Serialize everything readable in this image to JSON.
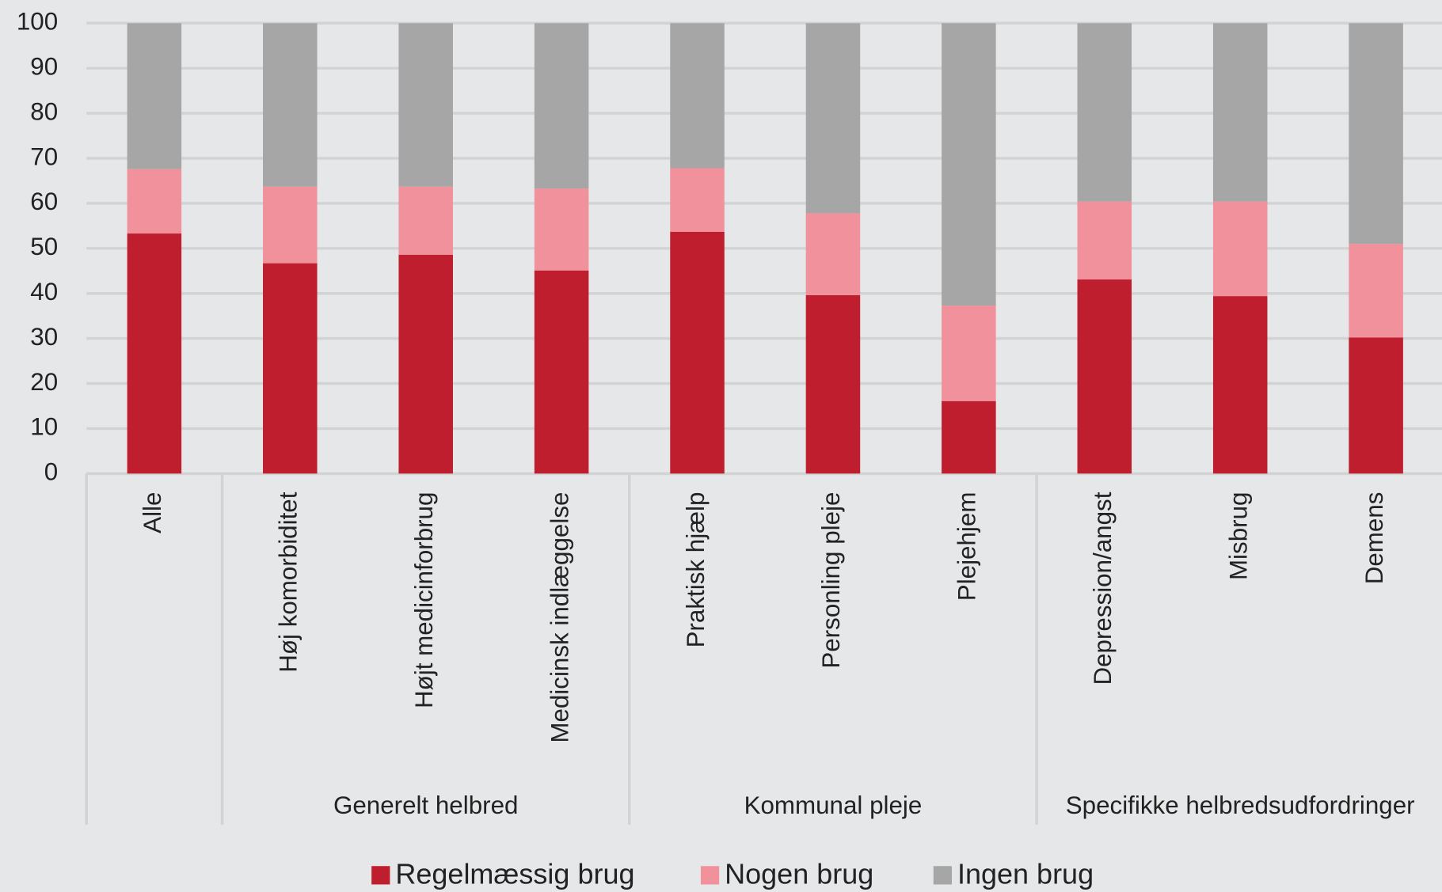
{
  "chart_data": {
    "type": "stacked_bar",
    "categories": [
      "Alle",
      "Høj komorbiditet",
      "Højt medicinforbrug",
      "Medicinsk indlæggelse",
      "Praktisk hjælp",
      "Personling pleje",
      "Plejehjem",
      "Depression/angst",
      "Misbrug",
      "Demens"
    ],
    "groups": [
      null,
      "Generelt helbred",
      "Kommunal pleje",
      "Specifikke helbredsudfordringer"
    ],
    "group_sizes": [
      1,
      3,
      3,
      3
    ],
    "series": [
      {
        "name": "Regelmæssig brug",
        "color": "#be1e2d",
        "values": [
          53.3,
          46.7,
          48.6,
          45.1,
          53.7,
          39.6,
          16.1,
          43.1,
          39.4,
          30.2
        ]
      },
      {
        "name": "Nogen brug",
        "color": "#f0919b",
        "values": [
          14.3,
          17.0,
          15.1,
          18.2,
          14.1,
          18.2,
          21.2,
          17.3,
          21.0,
          20.8
        ]
      },
      {
        "name": "Ingen brug",
        "color": "#a6a6a6",
        "values": [
          32.4,
          36.3,
          36.3,
          36.7,
          32.2,
          42.2,
          62.7,
          39.6,
          39.6,
          49.0
        ]
      }
    ],
    "ylim": [
      0,
      100
    ],
    "yticks": [
      0,
      10,
      20,
      30,
      40,
      50,
      60,
      70,
      80,
      90,
      100
    ],
    "grid": true
  }
}
